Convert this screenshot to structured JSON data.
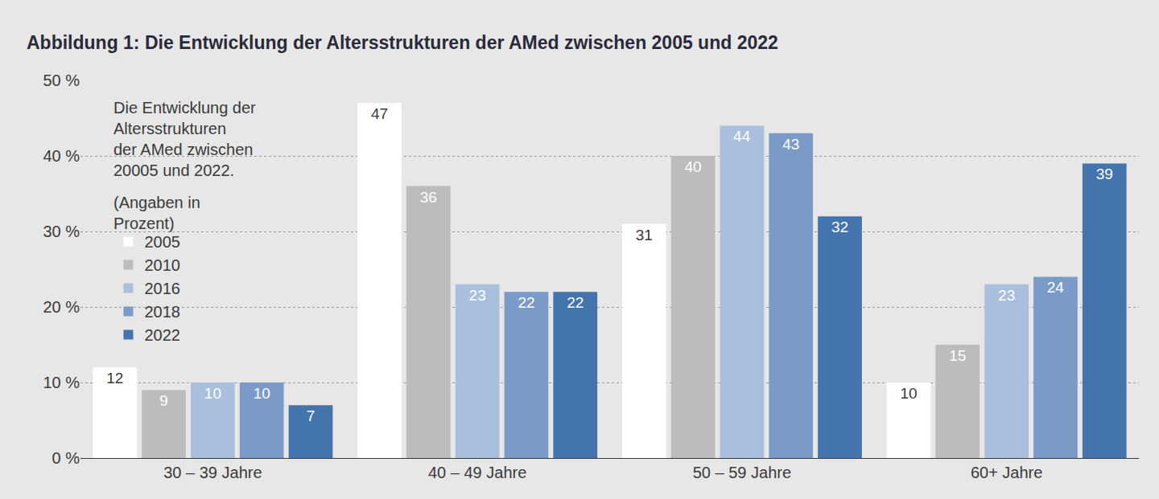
{
  "chart_data": {
    "type": "bar",
    "title": "Abbildung 1: Die Entwicklung der Altersstrukturen der AMed zwischen 2005 und 2022",
    "annotations": [
      "Die Entwicklung der Altersstrukturen der AMed zwischen 20005 und 2022.",
      "(Angaben in Prozent)"
    ],
    "categories": [
      "30 – 39 Jahre",
      "40 – 49 Jahre",
      "50 – 59 Jahre",
      "60+ Jahre"
    ],
    "series": [
      {
        "name": "2005",
        "color": "#ffffff",
        "values": [
          12,
          47,
          31,
          10
        ]
      },
      {
        "name": "2010",
        "color": "#bcbcbc",
        "values": [
          9,
          36,
          40,
          15
        ]
      },
      {
        "name": "2016",
        "color": "#a9bfdd",
        "values": [
          10,
          23,
          44,
          23
        ]
      },
      {
        "name": "2018",
        "color": "#7a9bc8",
        "values": [
          10,
          22,
          43,
          24
        ]
      },
      {
        "name": "2022",
        "color": "#4474ae",
        "values": [
          7,
          22,
          32,
          39
        ]
      }
    ],
    "ylim": [
      0,
      50
    ],
    "yticks": [
      {
        "value": 0,
        "label": "0 %"
      },
      {
        "value": 10,
        "label": "10 %"
      },
      {
        "value": 20,
        "label": "20 %"
      },
      {
        "value": 30,
        "label": "30 %"
      },
      {
        "value": 40,
        "label": "40 %"
      },
      {
        "value": 50,
        "label": "50 %"
      }
    ],
    "grid": true,
    "legend": "upper left",
    "data_labels": true
  }
}
